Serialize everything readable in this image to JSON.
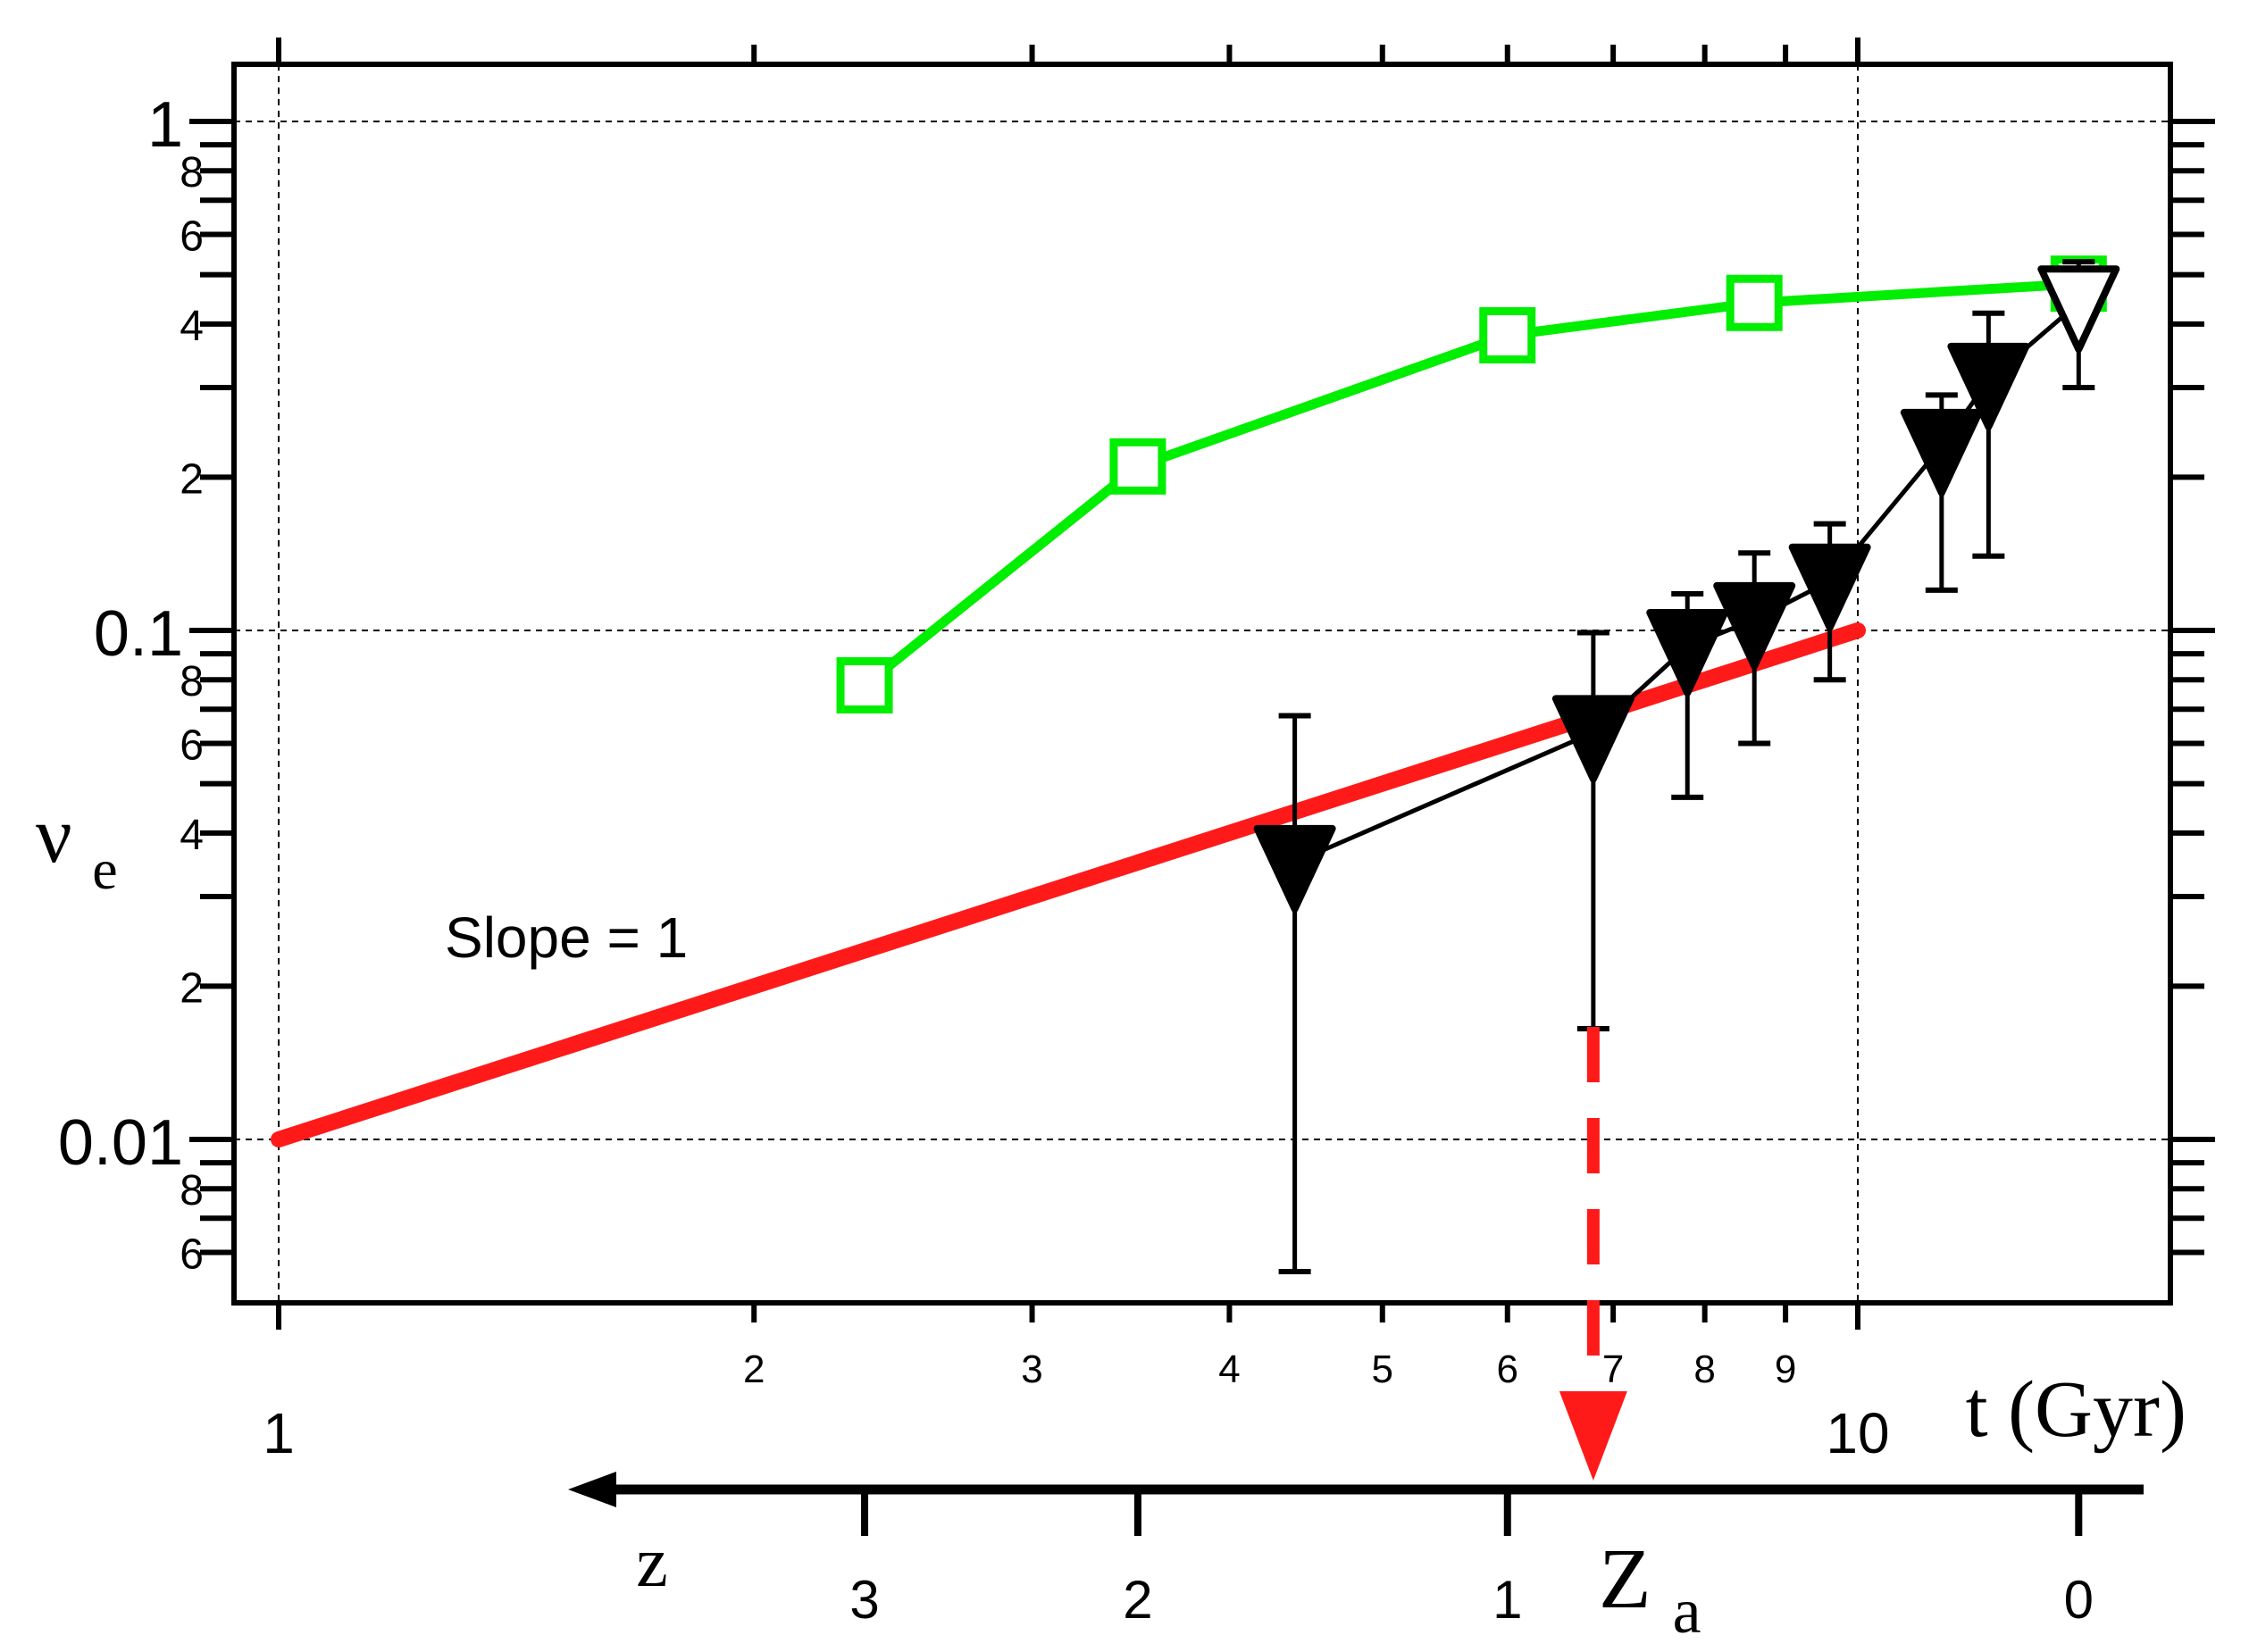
{
  "chart_data": {
    "type": "line",
    "xscale": "log",
    "yscale": "log",
    "xlim": [
      0.97,
      20.0
    ],
    "ylim": [
      0.0047,
      1.35
    ],
    "x_major_ticks": [
      {
        "v": 1,
        "label": "1"
      },
      {
        "v": 10,
        "label": "10"
      }
    ],
    "x_minor_ticks": [
      {
        "v": 2,
        "label": "2"
      },
      {
        "v": 3,
        "label": "3"
      },
      {
        "v": 4,
        "label": "4"
      },
      {
        "v": 5,
        "label": "5"
      },
      {
        "v": 6,
        "label": "6"
      },
      {
        "v": 7,
        "label": "7"
      },
      {
        "v": 8,
        "label": "8"
      },
      {
        "v": 9,
        "label": "9"
      }
    ],
    "y_major_ticks": [
      {
        "v": 0.01,
        "label": "0.01"
      },
      {
        "v": 0.1,
        "label": "0.1"
      },
      {
        "v": 1,
        "label": "1"
      }
    ],
    "y_minor_ticks": [
      {
        "v": 0.006,
        "label": "6"
      },
      {
        "v": 0.007,
        "label": ""
      },
      {
        "v": 0.008,
        "label": "8"
      },
      {
        "v": 0.009,
        "label": ""
      },
      {
        "v": 0.02,
        "label": "2"
      },
      {
        "v": 0.03,
        "label": ""
      },
      {
        "v": 0.04,
        "label": "4"
      },
      {
        "v": 0.05,
        "label": ""
      },
      {
        "v": 0.06,
        "label": "6"
      },
      {
        "v": 0.07,
        "label": ""
      },
      {
        "v": 0.08,
        "label": "8"
      },
      {
        "v": 0.09,
        "label": ""
      },
      {
        "v": 0.2,
        "label": "2"
      },
      {
        "v": 0.3,
        "label": ""
      },
      {
        "v": 0.4,
        "label": "4"
      },
      {
        "v": 0.5,
        "label": ""
      },
      {
        "v": 0.6,
        "label": "6"
      },
      {
        "v": 0.7,
        "label": ""
      },
      {
        "v": 0.8,
        "label": "8"
      },
      {
        "v": 0.9,
        "label": ""
      }
    ],
    "xlabel": "t (Gyr)",
    "ylabel_main": "ν",
    "ylabel_sub": "e",
    "grid": "dashed at major ticks",
    "series": [
      {
        "type": "line",
        "color": "#ff1a1a",
        "x": [
          1,
          10
        ],
        "y": [
          0.01,
          0.1
        ]
      },
      {
        "type": "line-markers",
        "marker": "open-square",
        "color": "#00ee00",
        "x": [
          2.35,
          3.5,
          6.0,
          8.6,
          13.8
        ],
        "y": [
          0.078,
          0.21,
          0.38,
          0.44,
          0.48
        ]
      },
      {
        "type": "line-markers",
        "marker": "filled-triangle-down",
        "color": "#000000",
        "x": [
          4.4,
          6.8,
          7.8,
          8.6,
          9.6,
          11.3,
          12.1
        ],
        "y": [
          0.035,
          0.063,
          0.093,
          0.105,
          0.125,
          0.23,
          0.31
        ],
        "y_err_low": [
          0.0055,
          0.0165,
          0.047,
          0.06,
          0.08,
          0.12,
          0.14
        ],
        "y_err_high": [
          0.068,
          0.099,
          0.118,
          0.142,
          0.162,
          0.29,
          0.42
        ]
      },
      {
        "type": "marker",
        "marker": "open-triangle-down",
        "color": "#000000",
        "x": [
          13.8
        ],
        "y": [
          0.44
        ],
        "y_err_low": [
          0.3
        ],
        "y_err_high": [
          0.53
        ]
      }
    ],
    "annotations": {
      "slope_label": "Slope = 1",
      "za_arrow_x": 6.8,
      "za_main": "Z",
      "za_sub": "a"
    },
    "z_axis": {
      "label": "z",
      "ticks": [
        {
          "z": 3,
          "t": 2.35
        },
        {
          "z": 2,
          "t": 3.5
        },
        {
          "z": 1,
          "t": 6.0
        },
        {
          "z": 0,
          "t": 13.8
        }
      ],
      "tick_labels": [
        "3",
        "2",
        "1",
        "0"
      ],
      "direction": "increasing to the left"
    }
  }
}
